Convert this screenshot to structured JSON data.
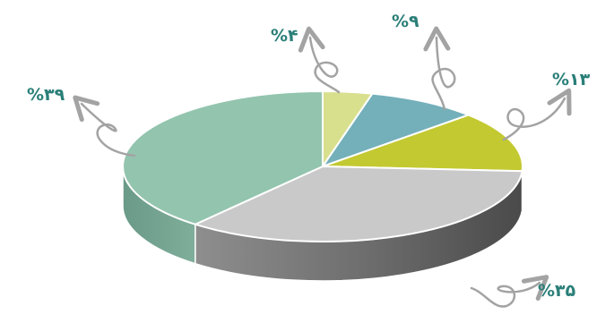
{
  "chart_data": {
    "type": "pie",
    "title": "",
    "slices": [
      {
        "label": "%۴",
        "value": 4,
        "color": "#d8e08e"
      },
      {
        "label": "%۹",
        "value": 9,
        "color": "#74b0ba"
      },
      {
        "label": "%۱۳",
        "value": 13,
        "color": "#c3c931"
      },
      {
        "label": "%۳۵",
        "value": 35,
        "color": "#c9c9c9"
      },
      {
        "label": "%۳۹",
        "value": 39,
        "color": "#93c4ae"
      }
    ],
    "style": "3d-tilted",
    "legend": "none",
    "arrow_color": "#a3a3a3"
  }
}
